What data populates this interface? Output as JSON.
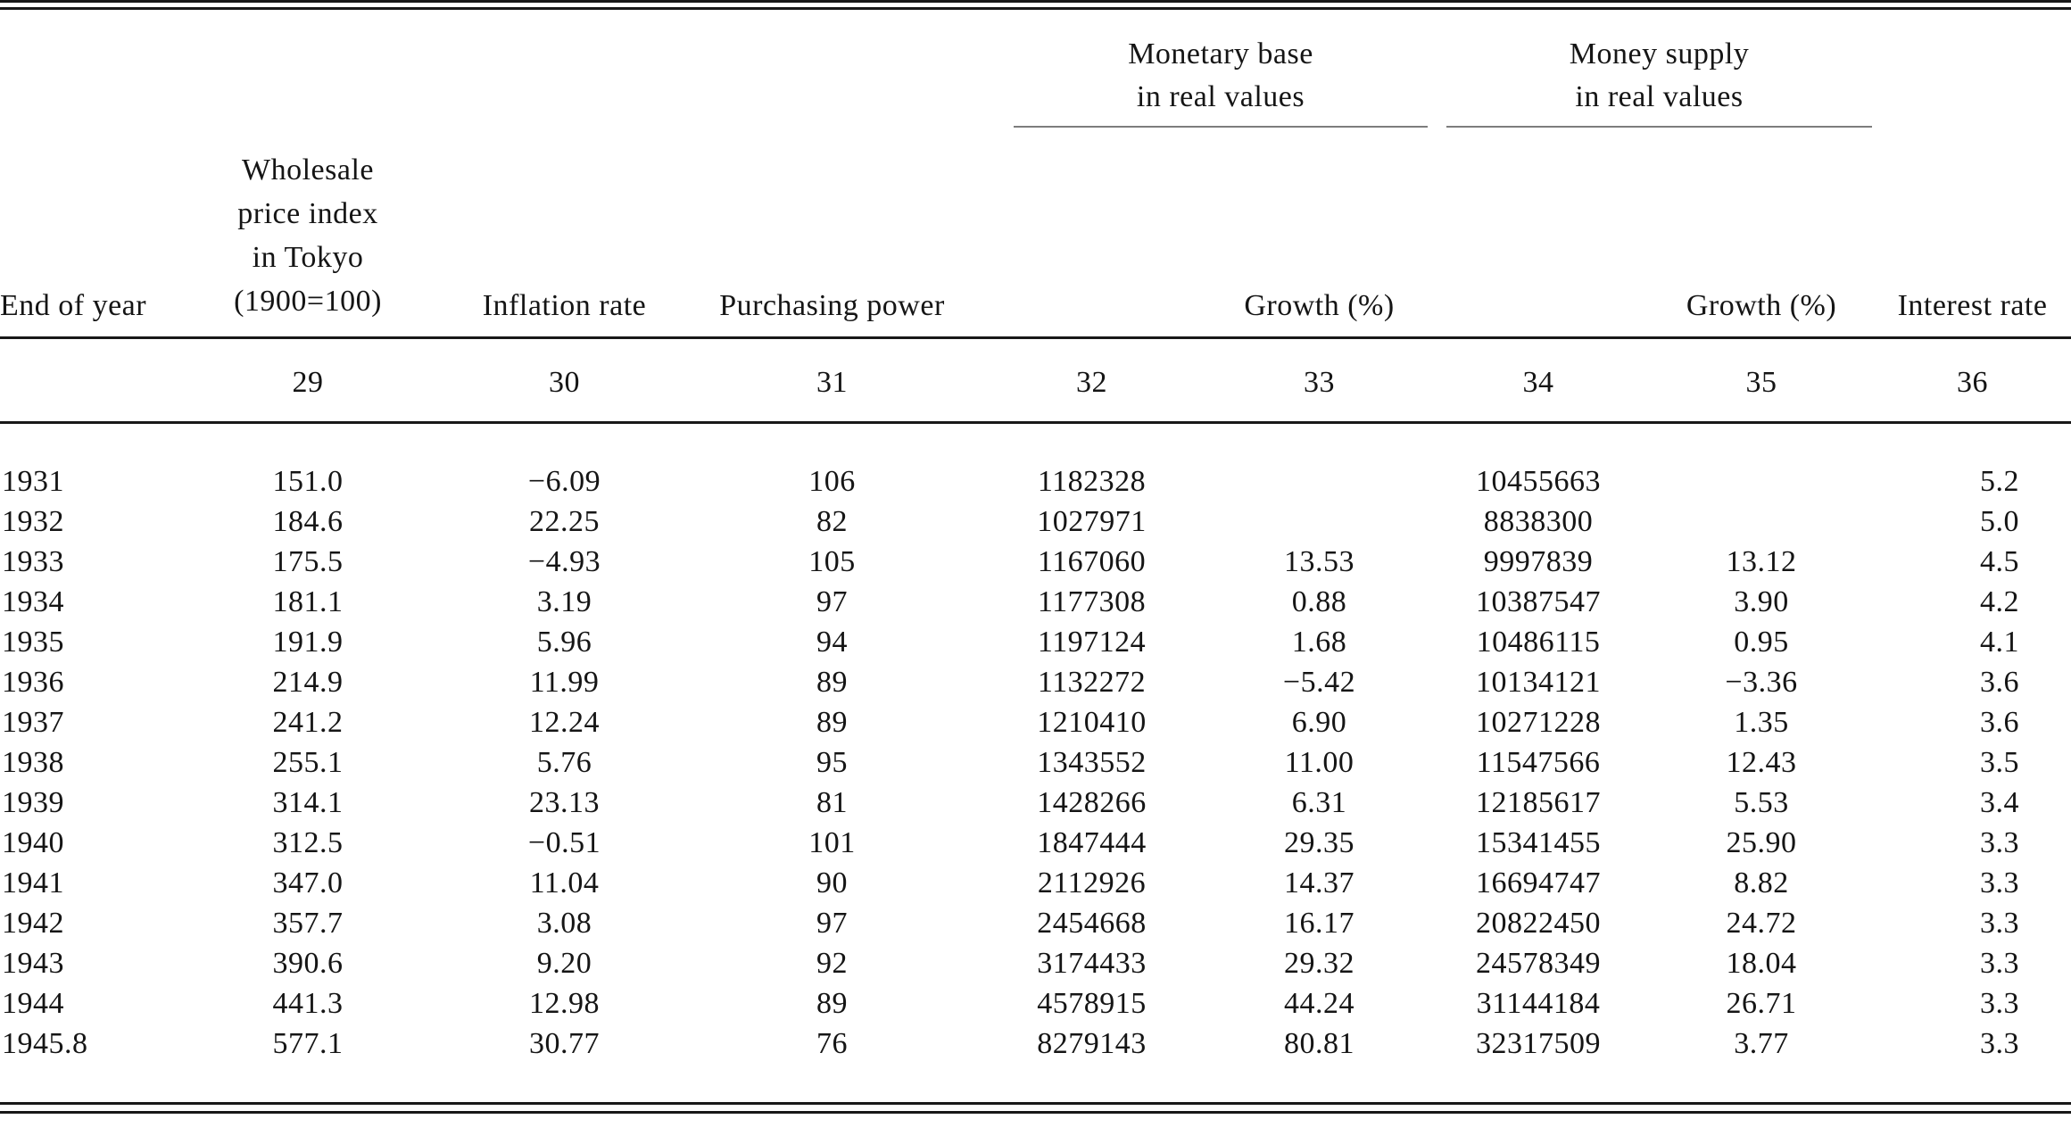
{
  "table": {
    "spanners": {
      "monetary_base": "Monetary base\nin real values",
      "money_supply": "Money supply\nin real values"
    },
    "headers": {
      "end_of_year": "End of year",
      "wholesale_price_index": "Wholesale\nprice index\nin Tokyo\n(1900=100)",
      "inflation_rate": "Inflation rate",
      "purchasing_power": "Purchasing power",
      "growth_monetary_base": "Growth (%)",
      "growth_money_supply": "Growth (%)",
      "interest_rate": "Interest rate"
    },
    "column_numbers": [
      "29",
      "30",
      "31",
      "32",
      "33",
      "34",
      "35",
      "36"
    ],
    "rows": [
      [
        "1931",
        "151.0",
        "−6.09",
        "106",
        "1182328",
        "",
        "10455663",
        "",
        "5.2"
      ],
      [
        "1932",
        "184.6",
        "22.25",
        "82",
        "1027971",
        "",
        "8838300",
        "",
        "5.0"
      ],
      [
        "1933",
        "175.5",
        "−4.93",
        "105",
        "1167060",
        "13.53",
        "9997839",
        "13.12",
        "4.5"
      ],
      [
        "1934",
        "181.1",
        "3.19",
        "97",
        "1177308",
        "0.88",
        "10387547",
        "3.90",
        "4.2"
      ],
      [
        "1935",
        "191.9",
        "5.96",
        "94",
        "1197124",
        "1.68",
        "10486115",
        "0.95",
        "4.1"
      ],
      [
        "1936",
        "214.9",
        "11.99",
        "89",
        "1132272",
        "−5.42",
        "10134121",
        "−3.36",
        "3.6"
      ],
      [
        "1937",
        "241.2",
        "12.24",
        "89",
        "1210410",
        "6.90",
        "10271228",
        "1.35",
        "3.6"
      ],
      [
        "1938",
        "255.1",
        "5.76",
        "95",
        "1343552",
        "11.00",
        "11547566",
        "12.43",
        "3.5"
      ],
      [
        "1939",
        "314.1",
        "23.13",
        "81",
        "1428266",
        "6.31",
        "12185617",
        "5.53",
        "3.4"
      ],
      [
        "1940",
        "312.5",
        "−0.51",
        "101",
        "1847444",
        "29.35",
        "15341455",
        "25.90",
        "3.3"
      ],
      [
        "1941",
        "347.0",
        "11.04",
        "90",
        "2112926",
        "14.37",
        "16694747",
        "8.82",
        "3.3"
      ],
      [
        "1942",
        "357.7",
        "3.08",
        "97",
        "2454668",
        "16.17",
        "20822450",
        "24.72",
        "3.3"
      ],
      [
        "1943",
        "390.6",
        "9.20",
        "92",
        "3174433",
        "29.32",
        "24578349",
        "18.04",
        "3.3"
      ],
      [
        "1944",
        "441.3",
        "12.98",
        "89",
        "4578915",
        "44.24",
        "31144184",
        "26.71",
        "3.3"
      ],
      [
        "1945.8",
        "577.1",
        "30.77",
        "76",
        "8279143",
        "80.81",
        "32317509",
        "3.77",
        "3.3"
      ]
    ],
    "column_keys": [
      "year",
      "wpi",
      "inflation",
      "purchasing",
      "mb",
      "mb-growth",
      "ms",
      "ms-growth",
      "interest"
    ]
  }
}
